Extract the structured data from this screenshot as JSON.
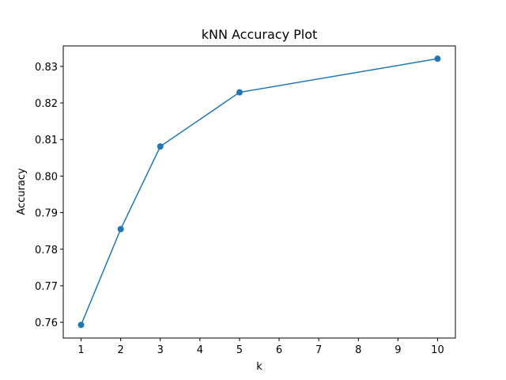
{
  "chart_data": {
    "type": "line",
    "title": "kNN Accuracy Plot",
    "xlabel": "k",
    "ylabel": "Accuracy",
    "xlim": [
      0.55,
      10.45
    ],
    "ylim": [
      0.7557,
      0.8356
    ],
    "xticks": [
      1,
      2,
      3,
      4,
      5,
      6,
      7,
      8,
      9,
      10
    ],
    "yticks": [
      0.76,
      0.77,
      0.78,
      0.79,
      0.8,
      0.81,
      0.82,
      0.83
    ],
    "ytick_labels": [
      "0.76",
      "0.77",
      "0.78",
      "0.79",
      "0.80",
      "0.81",
      "0.82",
      "0.83"
    ],
    "grid": false,
    "series": [
      {
        "x": [
          1,
          2,
          3,
          5,
          10
        ],
        "y": [
          0.7593,
          0.7855,
          0.8081,
          0.8229,
          0.8321
        ],
        "color": "#1f77b4",
        "marker": "circle"
      }
    ]
  }
}
